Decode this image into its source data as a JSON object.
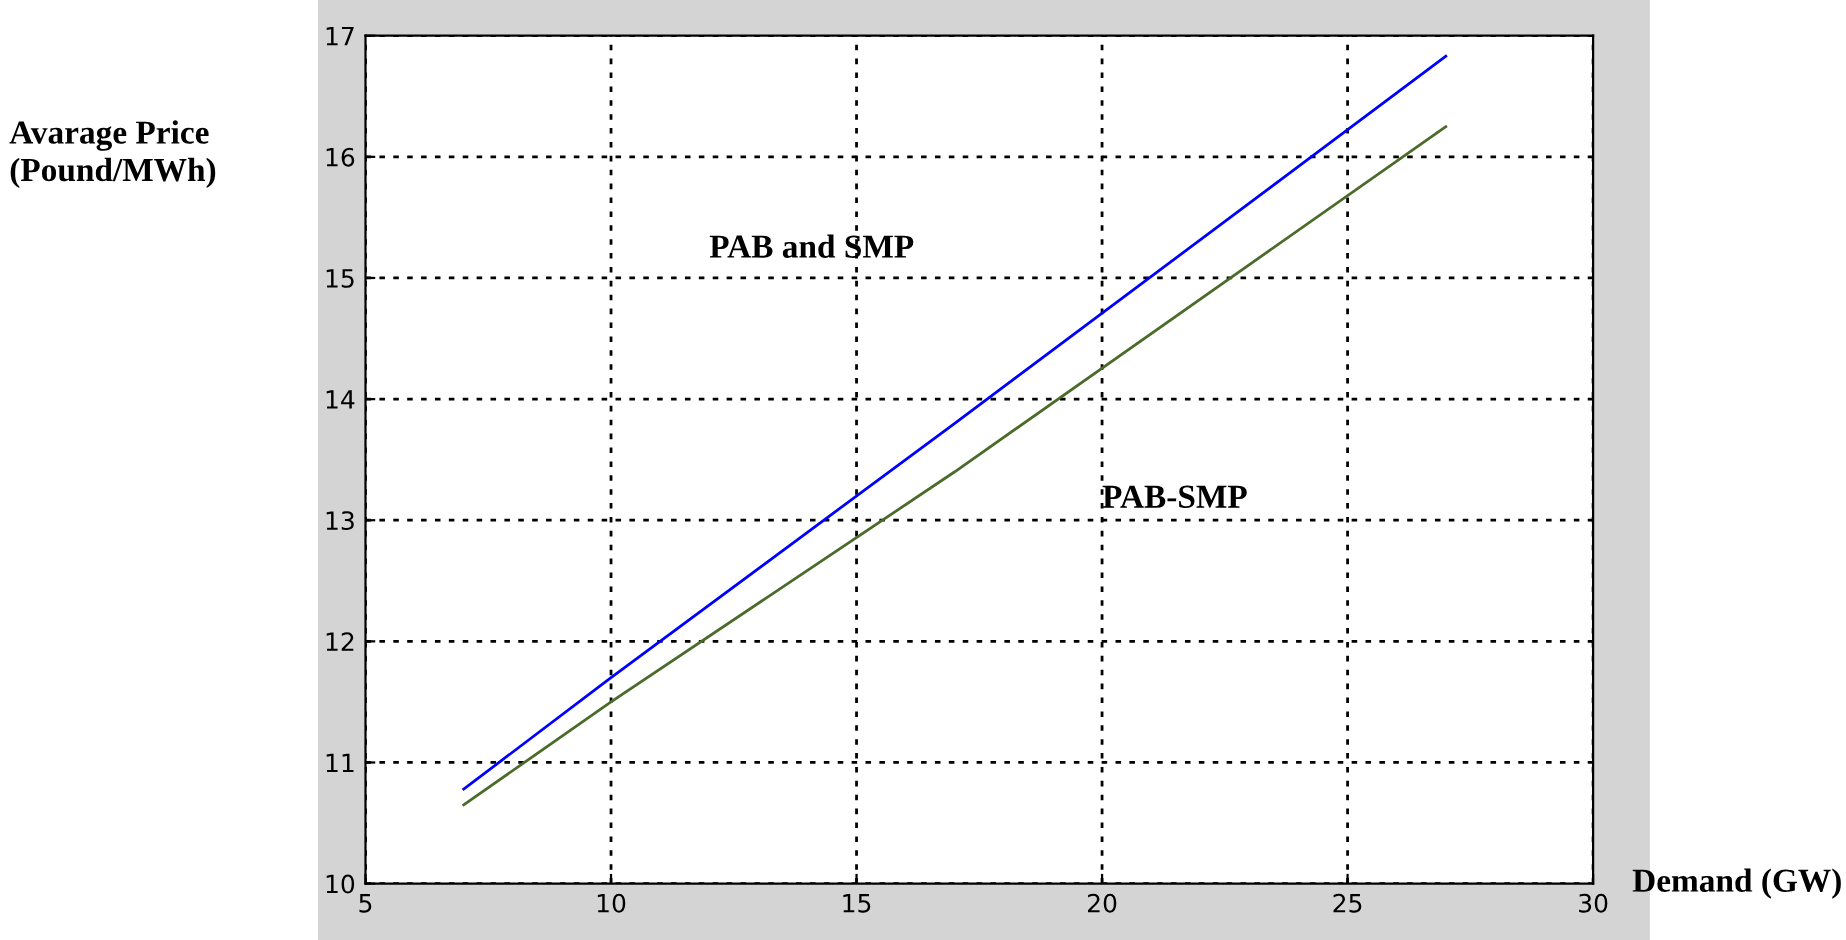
{
  "chart_data": {
    "type": "line",
    "xlabel": "Demand (GW)",
    "ylabel": "Avarage Price\n(Pound/MWh)",
    "series": [
      {
        "x": [
          7,
          10,
          17,
          27
        ],
        "values": [
          10.78,
          11.7,
          13.8,
          16.83
        ],
        "color": "#0000ff"
      },
      {
        "x": [
          7,
          10,
          17,
          27
        ],
        "values": [
          10.65,
          11.5,
          13.4,
          16.25
        ],
        "color": "#4b6b2a"
      }
    ],
    "xlim": [
      5,
      30
    ],
    "xticks": [
      5,
      10,
      15,
      20,
      25,
      30
    ],
    "ylim": [
      10,
      17
    ],
    "yticks": [
      10,
      11,
      12,
      13,
      14,
      15,
      16,
      17
    ],
    "grid": true,
    "line_style": "solid",
    "marker": "none",
    "annotations": [
      "PAB and SMP",
      "PAB-SMP"
    ]
  }
}
